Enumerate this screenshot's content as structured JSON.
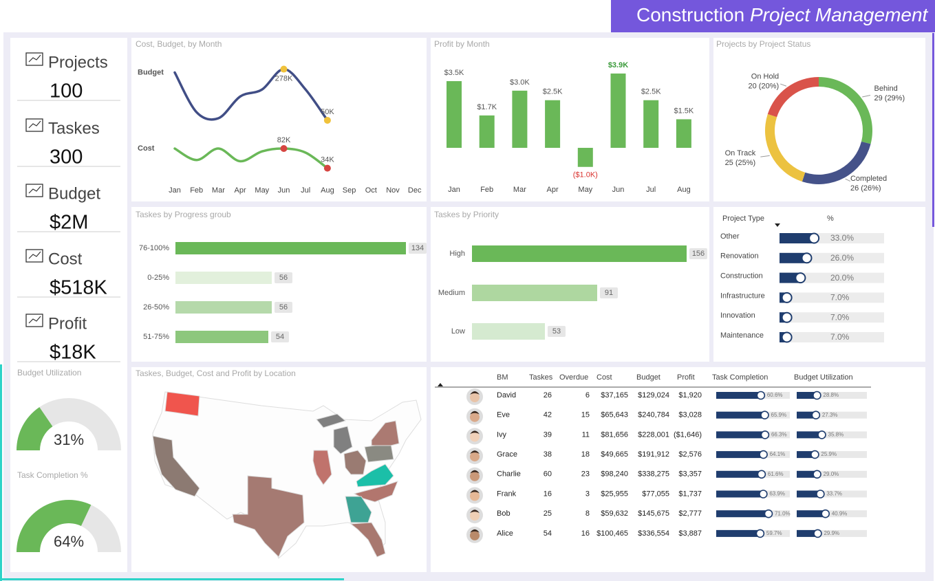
{
  "header": {
    "title_main": "Construction",
    "title_italic": "Project Management"
  },
  "kpis": [
    {
      "label": "Projects",
      "value": "100"
    },
    {
      "label": "Taskes",
      "value": "300"
    },
    {
      "label": "Budget",
      "value": "$2M"
    },
    {
      "label": "Cost",
      "value": "$518K"
    },
    {
      "label": "Profit",
      "value": "$18K"
    }
  ],
  "gauges": [
    {
      "title": "Budget Utilization",
      "value": 31,
      "value_label": "31%",
      "range": [
        0,
        100
      ],
      "color": "#6ab858"
    },
    {
      "title": "Task Completion %",
      "value": 64,
      "value_label": "64%",
      "range": [
        0,
        100
      ],
      "color": "#6ab858"
    }
  ],
  "cost_budget": {
    "type": "line",
    "title": "Cost, Budget, by Month",
    "categories": [
      "Jan",
      "Feb",
      "Mar",
      "Apr",
      "May",
      "Jun",
      "Jul",
      "Aug",
      "Sep",
      "Oct",
      "Nov",
      "Dec"
    ],
    "series": [
      {
        "name": "Budget",
        "color": "#414e86",
        "marker_color": "#f0c23b",
        "ylim": [
          -180000,
          295000
        ],
        "values": [
          263000,
          86000,
          59000,
          156000,
          187000,
          278000,
          187000,
          50000,
          null,
          null,
          null,
          null
        ],
        "value_labels": [
          null,
          null,
          null,
          null,
          null,
          "278K",
          null,
          "50K",
          null,
          null,
          null,
          null
        ]
      },
      {
        "name": "Cost",
        "color": "#6ab858",
        "marker_color": "#d64541",
        "ylim": [
          25000,
          285000
        ],
        "values": [
          82000,
          54000,
          82000,
          51000,
          75000,
          82000,
          72000,
          34000,
          null,
          null,
          null,
          null
        ],
        "value_labels": [
          null,
          null,
          null,
          null,
          null,
          "82K",
          null,
          "34K",
          null,
          null,
          null,
          null
        ]
      }
    ]
  },
  "profit": {
    "type": "bar",
    "title": "Profit by Month",
    "categories": [
      "Jan",
      "Feb",
      "Mar",
      "Apr",
      "May",
      "Jun",
      "Jul",
      "Aug"
    ],
    "values": [
      3500,
      1700,
      3000,
      2500,
      -1000,
      3900,
      2500,
      1500
    ],
    "value_labels": [
      "$3.5K",
      "$1.7K",
      "$3.0K",
      "$2.5K",
      "($1.0K)",
      "$3.9K",
      "$2.5K",
      "$1.5K"
    ],
    "color": "#6ab858",
    "ylim": [
      -1500,
      4200
    ],
    "label_colors": {
      "default": "#555555",
      "max": "#3a9a3a",
      "negative": "#d9302c"
    }
  },
  "status": {
    "type": "pie",
    "title": "Projects by Project Status",
    "categories": [
      "Behind",
      "Completed",
      "On Track",
      "On Hold"
    ],
    "values": [
      29,
      26,
      25,
      20
    ],
    "value_labels": [
      "29 (29%)",
      "26 (26%)",
      "25 (25%)",
      "20 (20%)"
    ],
    "colors": [
      "#6ab858",
      "#455289",
      "#ecc240",
      "#d9534a"
    ]
  },
  "progress": {
    "type": "hbar",
    "title": "Taskes by Progress groub",
    "categories": [
      "76-100%",
      "0-25%",
      "26-50%",
      "51-75%"
    ],
    "values": [
      134,
      56,
      56,
      54
    ],
    "colors": [
      "#6ab858",
      "#e2f0dc",
      "#b5d9aa",
      "#8dc77d"
    ],
    "xlim": [
      0,
      140
    ]
  },
  "priority": {
    "type": "hbar",
    "title": "Taskes by Priority",
    "categories": [
      "High",
      "Medium",
      "Low"
    ],
    "values": [
      156,
      91,
      53
    ],
    "colors": [
      "#6ab858",
      "#aed7a0",
      "#d5ead0"
    ],
    "xlim": [
      0,
      160
    ]
  },
  "project_type": {
    "header": [
      "Project Type",
      "%"
    ],
    "range": [
      0,
      100
    ],
    "color": "#1f3d6e",
    "rows": [
      {
        "name": "Other",
        "value": 33,
        "label": "33.0%"
      },
      {
        "name": "Renovation",
        "value": 26,
        "label": "26.0%"
      },
      {
        "name": "Construction",
        "value": 20,
        "label": "20.0%"
      },
      {
        "name": "Infrastructure",
        "value": 7,
        "label": "7.0%"
      },
      {
        "name": "Innovation",
        "value": 7,
        "label": "7.0%"
      },
      {
        "name": "Maintenance",
        "value": 7,
        "label": "7.0%"
      }
    ]
  },
  "map": {
    "title": "Taskes, Budget, Cost and Profit by Location"
  },
  "table": {
    "columns": [
      "BM",
      "Taskes",
      "Overdue",
      "Cost",
      "Budget",
      "Profit",
      "Task Completion",
      "Budget Utilization"
    ],
    "bar_range": [
      0,
      100
    ],
    "bar_color": "#1f3d6e",
    "rows": [
      {
        "name": "David",
        "tasks": "26",
        "overdue": "6",
        "cost": "$37,165",
        "budget": "$129,024",
        "profit": "$1,920",
        "completion": 60.6,
        "completion_label": "60.6%",
        "utilization": 28.8,
        "utilization_label": "28.8%"
      },
      {
        "name": "Eve",
        "tasks": "42",
        "overdue": "15",
        "cost": "$65,643",
        "budget": "$240,784",
        "profit": "$3,028",
        "completion": 65.9,
        "completion_label": "65.9%",
        "utilization": 27.3,
        "utilization_label": "27.3%"
      },
      {
        "name": "Ivy",
        "tasks": "39",
        "overdue": "11",
        "cost": "$81,656",
        "budget": "$228,001",
        "profit": "($1,646)",
        "completion": 66.3,
        "completion_label": "66.3%",
        "utilization": 35.8,
        "utilization_label": "35.8%"
      },
      {
        "name": "Grace",
        "tasks": "38",
        "overdue": "18",
        "cost": "$49,665",
        "budget": "$191,912",
        "profit": "$2,576",
        "completion": 64.1,
        "completion_label": "64.1%",
        "utilization": 25.9,
        "utilization_label": "25.9%"
      },
      {
        "name": "Charlie",
        "tasks": "60",
        "overdue": "23",
        "cost": "$98,240",
        "budget": "$338,275",
        "profit": "$3,357",
        "completion": 61.6,
        "completion_label": "61.6%",
        "utilization": 29.0,
        "utilization_label": "29.0%"
      },
      {
        "name": "Frank",
        "tasks": "16",
        "overdue": "3",
        "cost": "$25,955",
        "budget": "$77,055",
        "profit": "$1,737",
        "completion": 63.9,
        "completion_label": "63.9%",
        "utilization": 33.7,
        "utilization_label": "33.7%"
      },
      {
        "name": "Bob",
        "tasks": "25",
        "overdue": "8",
        "cost": "$59,632",
        "budget": "$145,675",
        "profit": "$2,777",
        "completion": 71.0,
        "completion_label": "71.0%",
        "utilization": 40.9,
        "utilization_label": "40.9%"
      },
      {
        "name": "Alice",
        "tasks": "54",
        "overdue": "16",
        "cost": "$100,465",
        "budget": "$336,554",
        "profit": "$3,887",
        "completion": 59.7,
        "completion_label": "59.7%",
        "utilization": 29.9,
        "utilization_label": "29.9%"
      }
    ]
  }
}
